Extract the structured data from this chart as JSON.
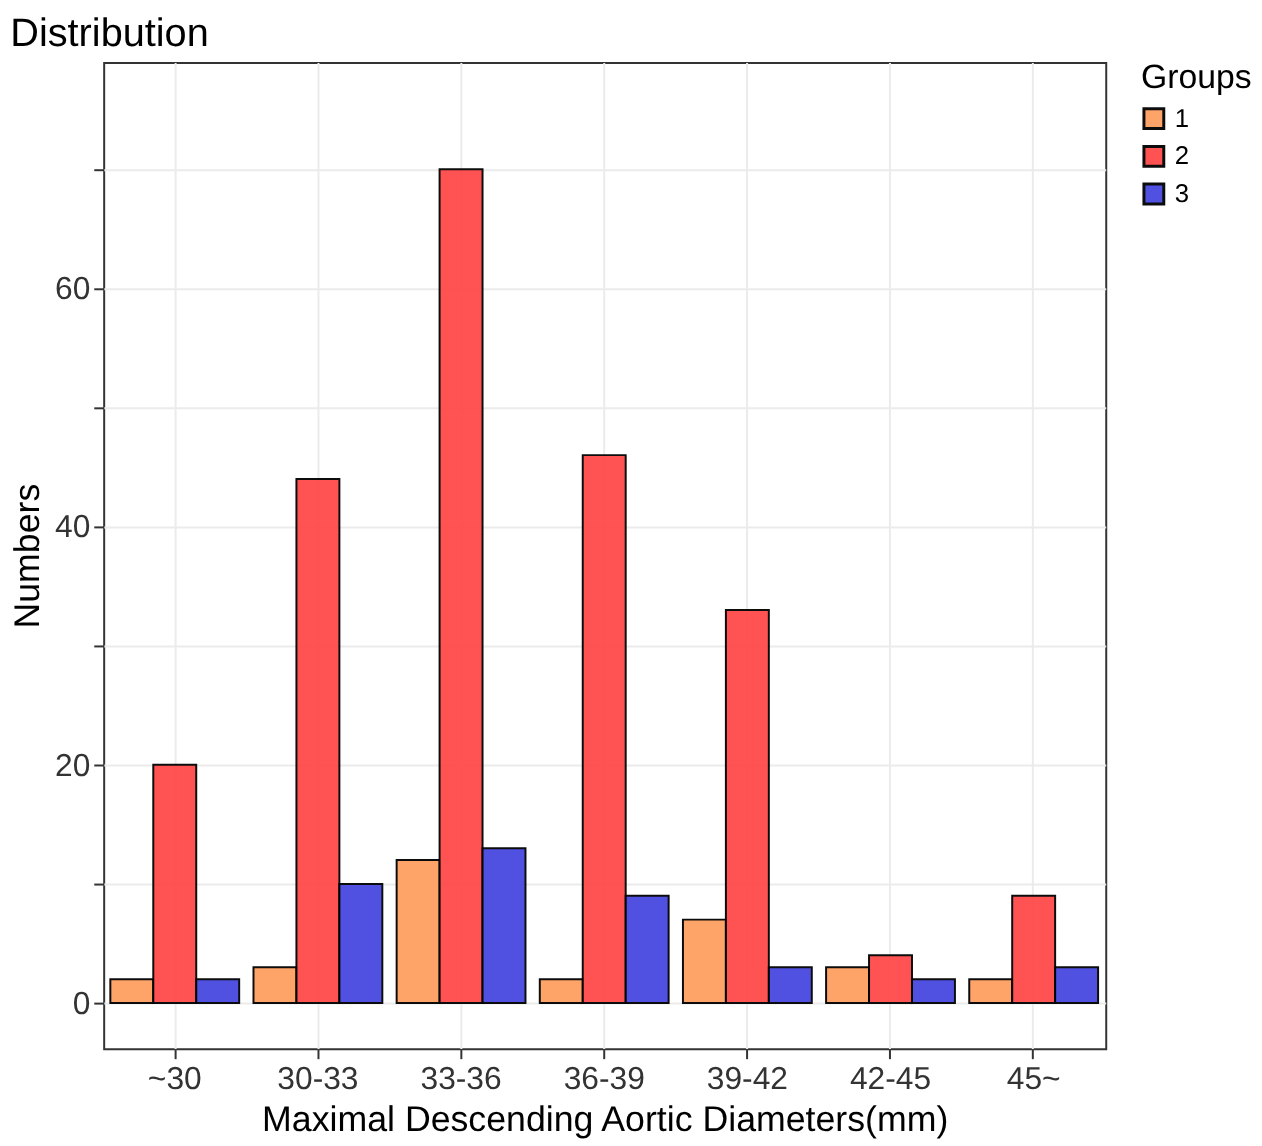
{
  "chart_data": {
    "type": "bar",
    "title": "Distribution",
    "xlabel": "Maximal Descending Aortic Diameters(mm)",
    "ylabel": "Numbers",
    "legend_title": "Groups",
    "categories": [
      "~30",
      "30-33",
      "33-36",
      "36-39",
      "39-42",
      "42-45",
      "45~"
    ],
    "series": [
      {
        "name": "1",
        "color": "#ffa060",
        "values": [
          2,
          3,
          12,
          2,
          7,
          3,
          2
        ]
      },
      {
        "name": "2",
        "color": "#ff4a4a",
        "values": [
          20,
          44,
          70,
          46,
          33,
          4,
          9
        ]
      },
      {
        "name": "3",
        "color": "#4848e0",
        "values": [
          2,
          10,
          13,
          9,
          3,
          2,
          3
        ]
      }
    ],
    "ylim": [
      -3.8,
      79
    ],
    "yticks": [
      0,
      {
        "value": 10,
        "label": null
      },
      20,
      {
        "value": 30,
        "label": null
      },
      40,
      {
        "value": 50,
        "label": null
      },
      60,
      {
        "value": 70,
        "label": null
      }
    ],
    "grid": true,
    "legend": "right"
  }
}
